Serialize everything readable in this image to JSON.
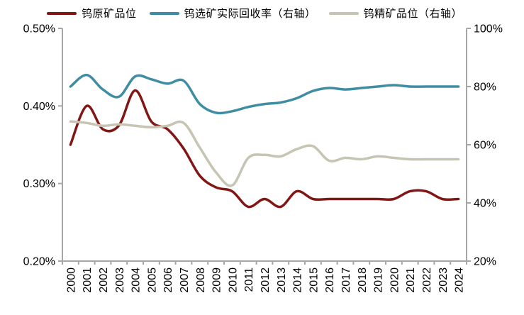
{
  "chart_data": {
    "type": "line",
    "smooth": true,
    "grid": false,
    "legend_position": "top",
    "background": "#FFFFFF",
    "axis_color": "#A6A6A6",
    "text_color": "#000000",
    "x_categories": [
      "2000",
      "2001",
      "2002",
      "2003",
      "2004",
      "2005",
      "2006",
      "2007",
      "2008",
      "2009",
      "2010",
      "2011",
      "2012",
      "2013",
      "2014",
      "2015",
      "2016",
      "2017",
      "2018",
      "2019",
      "2020",
      "2021",
      "2022",
      "2023",
      "2024"
    ],
    "left_axis": {
      "min": 0.2,
      "max": 0.5,
      "tick_values": [
        0.2,
        0.3,
        0.4,
        0.5
      ],
      "tick_labels": [
        "0.20%",
        "0.30%",
        "0.40%",
        "0.50%"
      ]
    },
    "right_axis": {
      "min": 20,
      "max": 100,
      "tick_values": [
        20,
        40,
        60,
        80,
        100
      ],
      "tick_labels": [
        "20%",
        "40%",
        "60%",
        "80%",
        "100%"
      ]
    },
    "series": [
      {
        "name": "钨原矿品位",
        "axis": "left",
        "color": "#811715",
        "values": [
          0.35,
          0.4,
          0.37,
          0.375,
          0.42,
          0.38,
          0.37,
          0.345,
          0.31,
          0.295,
          0.29,
          0.27,
          0.28,
          0.27,
          0.29,
          0.28,
          0.28,
          0.28,
          0.28,
          0.28,
          0.28,
          0.29,
          0.29,
          0.28,
          0.28
        ]
      },
      {
        "name": "钨选矿实际回收率（右轴）",
        "axis": "right",
        "color": "#3F8DA2",
        "values": [
          80,
          84,
          79,
          76.5,
          83.5,
          82.5,
          81,
          82,
          74,
          71,
          71.5,
          73,
          74,
          74.5,
          76,
          78.5,
          79.5,
          79,
          79.5,
          80,
          80.5,
          80,
          80,
          80,
          80
        ]
      },
      {
        "name": "钨精矿品位（右轴）",
        "axis": "right",
        "color": "#C6C4B2",
        "values": [
          68,
          67.5,
          66.5,
          67,
          66.5,
          66,
          66.5,
          67.5,
          59,
          50.5,
          46,
          55.5,
          56.5,
          56,
          58.5,
          59.5,
          54.5,
          55.5,
          55,
          56,
          55.5,
          55,
          55,
          55,
          55
        ]
      }
    ]
  }
}
